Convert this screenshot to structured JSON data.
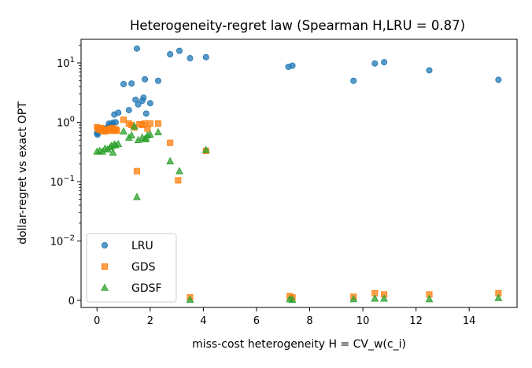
{
  "chart_data": {
    "type": "scatter",
    "title": "Heterogeneity-regret law (Spearman H,LRU = 0.87)",
    "xlabel": "miss-cost heterogeneity  H = CV_w(c_i)",
    "ylabel": "dollar-regret vs exact OPT",
    "xlim": [
      -0.6,
      15.8
    ],
    "yscale": "symlog",
    "ylim": [
      -0.0012,
      25
    ],
    "x_ticks": [
      0,
      2,
      4,
      6,
      8,
      10,
      12,
      14
    ],
    "y_ticks": [
      {
        "value": 0,
        "label": "0"
      },
      {
        "value": 0.01,
        "label": "10^-2"
      },
      {
        "value": 0.1,
        "label": "10^-1"
      },
      {
        "value": 1,
        "label": "10^0"
      },
      {
        "value": 10,
        "label": "10^1"
      }
    ],
    "grid": false,
    "legend_position": "lower-left",
    "series": [
      {
        "name": "LRU",
        "marker": "circle",
        "color": "#1f77b4",
        "points": [
          [
            0.0,
            0.65
          ],
          [
            0.02,
            0.62
          ],
          [
            0.05,
            0.68
          ],
          [
            0.1,
            0.72
          ],
          [
            0.2,
            0.75
          ],
          [
            0.3,
            0.78
          ],
          [
            0.4,
            0.82
          ],
          [
            0.45,
            0.95
          ],
          [
            0.5,
            0.88
          ],
          [
            0.55,
            0.92
          ],
          [
            0.6,
            0.98
          ],
          [
            0.65,
            1.35
          ],
          [
            0.7,
            1.0
          ],
          [
            0.8,
            1.45
          ],
          [
            1.0,
            4.4
          ],
          [
            1.3,
            4.5
          ],
          [
            1.2,
            1.6
          ],
          [
            1.45,
            2.4
          ],
          [
            1.5,
            17.5
          ],
          [
            1.55,
            2.0
          ],
          [
            1.7,
            2.3
          ],
          [
            1.75,
            2.6
          ],
          [
            1.8,
            5.3
          ],
          [
            1.85,
            1.4
          ],
          [
            2.0,
            2.1
          ],
          [
            2.3,
            5.0
          ],
          [
            2.75,
            14.0
          ],
          [
            3.1,
            16.0
          ],
          [
            3.5,
            12.0
          ],
          [
            4.1,
            12.5
          ],
          [
            7.2,
            8.6
          ],
          [
            7.35,
            9.0
          ],
          [
            9.65,
            5.0
          ],
          [
            10.45,
            9.8
          ],
          [
            10.8,
            10.3
          ],
          [
            12.5,
            7.5
          ],
          [
            15.1,
            5.2
          ]
        ]
      },
      {
        "name": "GDS",
        "marker": "square",
        "color": "#ff7f0e",
        "points": [
          [
            0.0,
            0.82
          ],
          [
            0.05,
            0.78
          ],
          [
            0.1,
            0.75
          ],
          [
            0.15,
            0.8
          ],
          [
            0.2,
            0.72
          ],
          [
            0.25,
            0.76
          ],
          [
            0.3,
            0.7
          ],
          [
            0.35,
            0.75
          ],
          [
            0.4,
            0.73
          ],
          [
            0.5,
            0.78
          ],
          [
            0.55,
            0.72
          ],
          [
            0.6,
            0.8
          ],
          [
            0.65,
            0.74
          ],
          [
            0.7,
            0.76
          ],
          [
            0.75,
            0.72
          ],
          [
            1.0,
            1.1
          ],
          [
            1.2,
            0.95
          ],
          [
            1.3,
            0.9
          ],
          [
            1.4,
            0.82
          ],
          [
            1.5,
            0.15
          ],
          [
            1.6,
            0.93
          ],
          [
            1.7,
            0.9
          ],
          [
            1.8,
            0.95
          ],
          [
            1.9,
            0.78
          ],
          [
            2.0,
            0.95
          ],
          [
            2.3,
            0.95
          ],
          [
            2.75,
            0.45
          ],
          [
            3.05,
            0.105
          ],
          [
            4.1,
            0.33
          ],
          [
            3.5,
            0.0005
          ],
          [
            7.25,
            0.0007
          ],
          [
            7.35,
            0.0005
          ],
          [
            9.65,
            0.0006
          ],
          [
            10.45,
            0.0012
          ],
          [
            10.8,
            0.001
          ],
          [
            12.5,
            0.001
          ],
          [
            15.1,
            0.0012
          ]
        ]
      },
      {
        "name": "GDSF",
        "marker": "triangle",
        "color": "#2ca02c",
        "points": [
          [
            0.0,
            0.32
          ],
          [
            0.1,
            0.33
          ],
          [
            0.2,
            0.32
          ],
          [
            0.3,
            0.36
          ],
          [
            0.4,
            0.35
          ],
          [
            0.5,
            0.38
          ],
          [
            0.55,
            0.4
          ],
          [
            0.6,
            0.31
          ],
          [
            0.65,
            0.42
          ],
          [
            0.7,
            0.41
          ],
          [
            0.8,
            0.43
          ],
          [
            1.0,
            0.7
          ],
          [
            1.2,
            0.55
          ],
          [
            1.3,
            0.6
          ],
          [
            1.4,
            0.85
          ],
          [
            1.5,
            0.055
          ],
          [
            1.55,
            0.5
          ],
          [
            1.7,
            0.55
          ],
          [
            1.8,
            0.52
          ],
          [
            1.85,
            0.53
          ],
          [
            1.9,
            0.6
          ],
          [
            2.0,
            0.62
          ],
          [
            2.3,
            0.68
          ],
          [
            2.75,
            0.22
          ],
          [
            3.1,
            0.15
          ],
          [
            4.1,
            0.34
          ],
          [
            3.5,
            0.0001
          ],
          [
            7.25,
            0.0002
          ],
          [
            7.35,
            0.0001
          ],
          [
            9.65,
            0.0002
          ],
          [
            10.45,
            0.0003
          ],
          [
            10.8,
            0.0003
          ],
          [
            12.5,
            0.0002
          ],
          [
            15.1,
            0.0004
          ]
        ]
      }
    ]
  }
}
